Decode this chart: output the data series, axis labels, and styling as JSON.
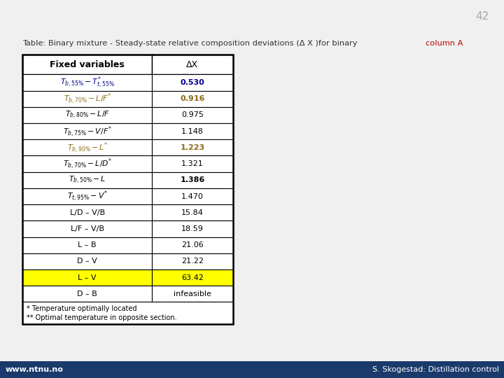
{
  "page_number": "42",
  "title_prefix": "Table: Binary mixture - Steady-state relative composition deviations (Δ X )for binary ",
  "title_colored": "column A",
  "title_colored_color": "#c00000",
  "header": [
    "Fixed variables",
    "ΔX"
  ],
  "rows": [
    {
      "var": "$T_{b,55\\%} - T_{t,55\\%}^{*}$",
      "val": "0.530",
      "bold": true,
      "color": "#00008B",
      "row_bg": "#ffffff"
    },
    {
      "var": "$T_{b,70\\%} - L/F^{*}$",
      "val": "0.916",
      "bold": true,
      "color": "#8B6914",
      "row_bg": "#ffffff"
    },
    {
      "var": "$T_{b,80\\%} - L/F$",
      "val": "0.975",
      "bold": false,
      "color": "#000000",
      "row_bg": "#ffffff"
    },
    {
      "var": "$T_{b,75\\%} - V/F^{*}$",
      "val": "1.148",
      "bold": false,
      "color": "#000000",
      "row_bg": "#ffffff"
    },
    {
      "var": "$T_{b,90\\%} - L^{*}$",
      "val": "1.223",
      "bold": true,
      "color": "#8B6914",
      "row_bg": "#ffffff"
    },
    {
      "var": "$T_{b,70\\%} - L/D^{*}$",
      "val": "1.321",
      "bold": false,
      "color": "#000000",
      "row_bg": "#ffffff"
    },
    {
      "var": "$T_{b,50\\%} - L$",
      "val": "1.386",
      "bold": true,
      "color": "#000000",
      "row_bg": "#ffffff"
    },
    {
      "var": "$T_{t,95\\%} - V^{*}$",
      "val": "1.470",
      "bold": false,
      "color": "#000000",
      "row_bg": "#ffffff"
    },
    {
      "var": "L/D – V/B",
      "val": "15.84",
      "bold": false,
      "color": "#000000",
      "row_bg": "#ffffff"
    },
    {
      "var": "L/F – V/B",
      "val": "18.59",
      "bold": false,
      "color": "#000000",
      "row_bg": "#ffffff"
    },
    {
      "var": "L – B",
      "val": "21.06",
      "bold": false,
      "color": "#000000",
      "row_bg": "#ffffff"
    },
    {
      "var": "D – V",
      "val": "21.22",
      "bold": false,
      "color": "#000000",
      "row_bg": "#ffffff"
    },
    {
      "var": "L – V",
      "val": "63.42",
      "bold": false,
      "color": "#000000",
      "row_bg": "#ffff00"
    },
    {
      "var": "D – B",
      "val": "infeasible",
      "bold": false,
      "color": "#000000",
      "row_bg": "#ffffff"
    }
  ],
  "footnote_line1": "* Temperature optimally located",
  "footnote_line2": "** Optimal temperature in opposite section.",
  "bottom_bar_color": "#1a3a6b",
  "bottom_text_left": "www.ntnu.no",
  "bottom_text_right": "S. Skogestad: Distillation control",
  "bg_color": "#f0f0f0"
}
